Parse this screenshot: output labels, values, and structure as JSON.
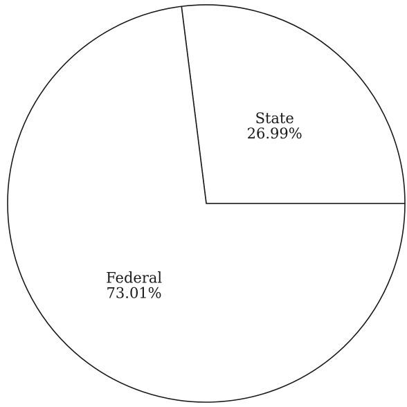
{
  "chart_data": {
    "type": "pie",
    "title": "",
    "slices": [
      {
        "label": "State",
        "value": 26.99,
        "value_text": "26.99%"
      },
      {
        "label": "Federal",
        "value": 73.01,
        "value_text": "73.01%"
      }
    ],
    "start_angle_deg": 0,
    "direction": "counterclockwise",
    "legend": "none",
    "colors": {
      "fill": "#ffffff",
      "stroke": "#1a1a1a"
    }
  }
}
